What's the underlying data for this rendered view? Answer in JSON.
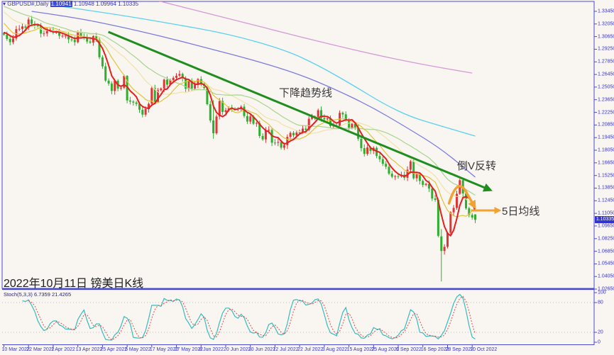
{
  "ui": {
    "caption": "2022年10月11日 镑美日K线",
    "trend_label": "下降趋势线",
    "reversal_label": "倒V反转",
    "ma5_label": "5日均线",
    "dropdown_glyph": "▾"
  },
  "chart_data": {
    "type": "candlestick",
    "title": "GBPUSD daily K-line with MAs, downtrend line and Stochastic",
    "main": {
      "header": {
        "symbol": "GBPUSD#,Daily",
        "open": "1.10941",
        "high": "1.10948",
        "low": "1.09964",
        "close": "1.10335"
      },
      "y_axis": {
        "labels": [
          "1.33450",
          "1.32050",
          "1.30650",
          "1.29250",
          "1.27850",
          "1.26450",
          "1.25050",
          "1.23650",
          "1.22250",
          "1.20850",
          "1.19450",
          "1.18050",
          "1.16650",
          "1.15250",
          "1.13850",
          "1.12450",
          "1.11050",
          "1.09650",
          "1.08250",
          "1.06850",
          "1.05450",
          "1.04050",
          "1.02650"
        ],
        "price_top": 1.3345,
        "price_step": 0.014,
        "current_price": "1.10335",
        "current_price_value": 1.10335
      },
      "x_axis": {
        "tick_labels": [
          "10 Mar 2022",
          "22 Mar 2022",
          "1 Apr 2022",
          "13 Apr 2022",
          "25 Apr 2022",
          "5 May 2022",
          "17 May 2022",
          "27 May 2022",
          "8 Jun 2022",
          "20 Jun 2022",
          "30 Jun 2022",
          "12 Jul 2022",
          "22 Jul 2022",
          "3 Aug 2022",
          "15 Aug 2022",
          "25 Aug 2022",
          "6 Sep 2022",
          "16 Sep 2022",
          "28 Sep 2022",
          "10 Oct 2022"
        ],
        "tick_every": 8
      },
      "colors": {
        "up_candle": "#e03535",
        "down_candle": "#2fae2f",
        "ma5": "#e51e1e",
        "ma10": "#e2c23a",
        "ma20": "#efe3a8",
        "ma30": "#a6d48e",
        "ma60": "#7b7be0",
        "ma120": "#59d1ef",
        "ma250": "#d49bd4",
        "trend": "#1e8f1e",
        "annotation_orange": "#f0a232",
        "axis_text": "#3636c0",
        "border": "#4b4bcd",
        "chip": "#3434d0"
      },
      "pre_closes": [
        1.3385,
        1.34,
        1.3435,
        1.3528,
        1.3535,
        1.355,
        1.3589,
        1.353,
        1.3528,
        1.356,
        1.3547,
        1.3592,
        1.3605,
        1.359,
        1.3539,
        1.341,
        1.3355,
        1.3389,
        1.341,
        1.3395,
        1.3345,
        1.3415,
        1.3405,
        1.3355,
        1.322,
        1.3183,
        1.3108,
        1.312,
        1.314,
        1.3105
      ],
      "closes": [
        1.3087,
        1.3039,
        1.3003,
        1.3044,
        1.3148,
        1.3151,
        1.3178,
        1.3164,
        1.3255,
        1.3207,
        1.3188,
        1.3184,
        1.3098,
        1.31,
        1.3133,
        1.3138,
        1.3111,
        1.3113,
        1.3074,
        1.3074,
        1.3076,
        1.3034,
        1.3029,
        1.3003,
        1.3115,
        1.3068,
        1.306,
        1.301,
        1.2998,
        1.307,
        1.3031,
        1.2836,
        1.2735,
        1.2577,
        1.2545,
        1.2462,
        1.2575,
        1.2489,
        1.2498,
        1.2629,
        1.2357,
        1.2345,
        1.2334,
        1.2318,
        1.2254,
        1.22,
        1.2261,
        1.232,
        1.2494,
        1.2342,
        1.247,
        1.249,
        1.2588,
        1.2533,
        1.2582,
        1.2608,
        1.2631,
        1.2651,
        1.2602,
        1.2487,
        1.2575,
        1.2489,
        1.2534,
        1.2593,
        1.2539,
        1.2495,
        1.2316,
        1.2135,
        1.1993,
        1.2179,
        1.235,
        1.2229,
        1.2248,
        1.2273,
        1.2266,
        1.2261,
        1.2268,
        1.2288,
        1.2184,
        1.2123,
        1.218,
        1.2099,
        1.2107,
        1.1963,
        1.1925,
        1.2023,
        1.2031,
        1.1889,
        1.1887,
        1.1896,
        1.1833,
        1.1861,
        1.1953,
        1.1998,
        1.1972,
        1.2001,
        1.2002,
        1.2045,
        1.2032,
        1.2154,
        1.2173,
        1.2174,
        1.2249,
        1.2162,
        1.2148,
        1.2158,
        1.2074,
        1.2078,
        1.2074,
        1.222,
        1.2203,
        1.2138,
        1.2055,
        1.2098,
        1.205,
        1.1932,
        1.1828,
        1.1765,
        1.1836,
        1.1797,
        1.1831,
        1.1741,
        1.1706,
        1.1655,
        1.1622,
        1.1545,
        1.1511,
        1.1518,
        1.1517,
        1.1533,
        1.15,
        1.1589,
        1.1681,
        1.1494,
        1.1537,
        1.1465,
        1.1421,
        1.1432,
        1.138,
        1.1269,
        1.1255,
        1.0856,
        1.0688,
        1.0734,
        1.0889,
        1.1117,
        1.1166,
        1.1322,
        1.1473,
        1.1326,
        1.1162,
        1.1088,
        1.1059,
        1.10335
      ],
      "first_open": 1.3105,
      "open_overrides": {
        "142": 1.085,
        "153": 1.1094
      },
      "high_low_overrides": {
        "40": [
          1.2638,
          1.2325
        ],
        "68": [
          1.236,
          1.1933
        ],
        "133": [
          1.1699,
          1.148
        ],
        "141": [
          1.1274,
          1.084
        ],
        "142": [
          1.093,
          1.035
        ],
        "148": [
          1.149,
          1.131
        ],
        "153": [
          1.10948,
          1.09964
        ]
      },
      "computed_mas": [
        {
          "name": "MA20",
          "period": 20,
          "color": "#efe3a8",
          "width": 1.2
        },
        {
          "name": "MA30",
          "period": 30,
          "color": "#a6d48e",
          "width": 1.2
        },
        {
          "name": "MA10",
          "period": 10,
          "color": "#e2c23a",
          "width": 1.2
        },
        {
          "name": "MA5",
          "period": 5,
          "color": "#e51e1e",
          "width": 2
        }
      ],
      "sampled_mas": [
        {
          "name": "MA250",
          "color": "#d49bd4",
          "width": 1.3,
          "points": [
            [
              49,
              1.3471
            ],
            [
              73,
              1.3266
            ],
            [
              96,
              1.3062
            ],
            [
              119,
              1.2874
            ],
            [
              137,
              1.2748
            ],
            [
              152,
              1.2661
            ]
          ]
        },
        {
          "name": "MA120",
          "color": "#59d1ef",
          "width": 1.3,
          "points": [
            [
              17,
              1.3408
            ],
            [
              36,
              1.3314
            ],
            [
              54,
              1.3211
            ],
            [
              73,
              1.3094
            ],
            [
              91,
              1.2921
            ],
            [
              102,
              1.2748
            ],
            [
              114,
              1.2512
            ],
            [
              123,
              1.2324
            ],
            [
              132,
              1.2174
            ],
            [
              142,
              1.2072
            ],
            [
              153,
              1.1962
            ]
          ]
        },
        {
          "name": "MA60",
          "color": "#7b7be0",
          "width": 1.3,
          "points": [
            [
              9,
              1.3345
            ],
            [
              22,
              1.3282
            ],
            [
              36,
              1.3188
            ],
            [
              52,
              1.3062
            ],
            [
              68,
              1.2921
            ],
            [
              82,
              1.2795
            ],
            [
              96,
              1.2646
            ],
            [
              107,
              1.2489
            ],
            [
              119,
              1.2292
            ],
            [
              130,
              1.2072
            ],
            [
              142,
              1.1821
            ],
            [
              153,
              1.1507
            ]
          ]
        }
      ],
      "trend_line": {
        "from": [
          33.9,
          1.3117
        ],
        "to": [
          157.8,
          1.1365
        ],
        "color": "#1e8f1e",
        "width": 3
      },
      "annotations": {
        "inverted_v_arrow": {
          "points": [
            [
              144.5,
              1.1216
            ],
            [
              147.2,
              1.1514
            ],
            [
              152.8,
              1.1177
            ]
          ],
          "color": "#f0a232",
          "width": 3.5
        },
        "ma5_arrow": {
          "from": [
            151.6,
            1.1137
          ],
          "to": [
            160.8,
            1.1137
          ],
          "color": "#f0a232",
          "width": 3
        }
      }
    },
    "stoch": {
      "label": "Stoch(5,3,3)",
      "k_value": "6.7359",
      "d_value": "21.4265",
      "params": [
        5,
        3,
        3
      ],
      "k_color": "#35bdbd",
      "d_color": "#e04848",
      "scale_labels": [
        "100",
        "80",
        "20",
        "0"
      ],
      "scale_values": [
        100,
        80,
        20,
        0
      ],
      "level_lines": [
        80,
        20
      ]
    }
  }
}
